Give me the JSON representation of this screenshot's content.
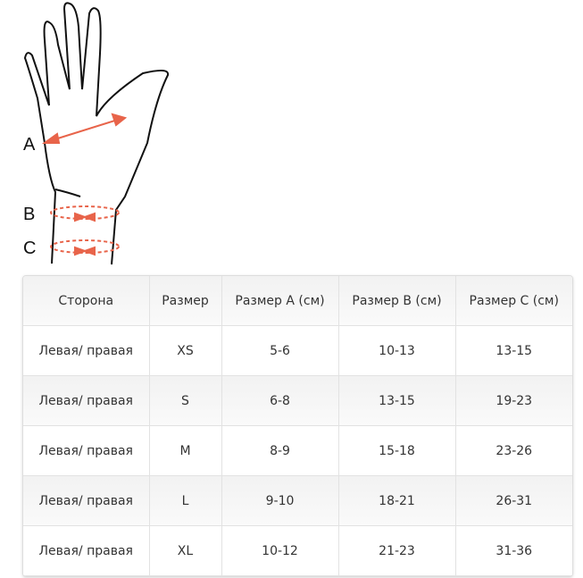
{
  "diagram": {
    "labels": [
      "A",
      "B",
      "C"
    ],
    "accent": "#e8644a"
  },
  "table": {
    "headers": [
      "Сторона",
      "Размер",
      "Размер A (см)",
      "Размер B (см)",
      "Размер C (см)"
    ],
    "rows": [
      [
        "Левая/ правая",
        "XS",
        "5-6",
        "10-13",
        "13-15"
      ],
      [
        "Левая/ правая",
        "S",
        "6-8",
        "13-15",
        "19-23"
      ],
      [
        "Левая/ правая",
        "M",
        "8-9",
        "15-18",
        "23-26"
      ],
      [
        "Левая/ правая",
        "L",
        "9-10",
        "18-21",
        "26-31"
      ],
      [
        "Левая/ правая",
        "XL",
        "10-12",
        "21-23",
        "31-36"
      ]
    ]
  }
}
